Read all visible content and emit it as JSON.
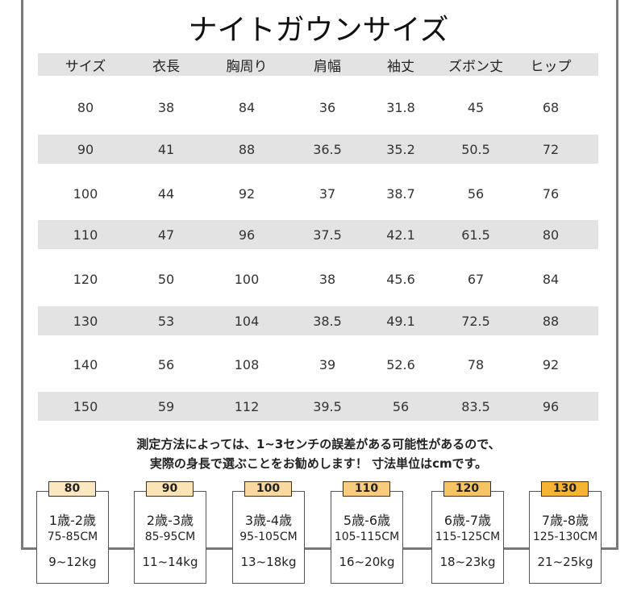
{
  "title": "ナイトガウンサイズ",
  "headers": [
    "サイズ",
    "衣長",
    "胸周り",
    "肩幅",
    "袖丈",
    "ズボン丈",
    "ヒップ"
  ],
  "rows": [
    [
      "80",
      "38",
      "84",
      "36",
      "31.8",
      "45",
      "68"
    ],
    [
      "90",
      "41",
      "88",
      "36.5",
      "35.2",
      "50.5",
      "72"
    ],
    [
      "100",
      "44",
      "92",
      "37",
      "38.7",
      "56",
      "76"
    ],
    [
      "110",
      "47",
      "96",
      "37.5",
      "42.1",
      "61.5",
      "80"
    ],
    [
      "120",
      "50",
      "100",
      "38",
      "45.6",
      "67",
      "84"
    ],
    [
      "130",
      "53",
      "104",
      "38.5",
      "49.1",
      "72.5",
      "88"
    ],
    [
      "140",
      "56",
      "108",
      "39",
      "52.6",
      "78",
      "92"
    ],
    [
      "150",
      "59",
      "112",
      "39.5",
      "56",
      "83.5",
      "96"
    ]
  ],
  "note": [
    "測定方法によっては、1~3センチの誤差がある可能性があるので、",
    "実際の身長で選ぶことをお勧めします！ 寸法単位はcmです。"
  ],
  "cards": [
    {
      "size": "80",
      "age": "1歳-2歳",
      "height": "75-85CM",
      "weight": "9~12kg",
      "color": "#fbe7c0"
    },
    {
      "size": "90",
      "age": "2歳-3歳",
      "height": "85-95CM",
      "weight": "11~14kg",
      "color": "#fbe3b5"
    },
    {
      "size": "100",
      "age": "3歳-4歳",
      "height": "95-105CM",
      "weight": "13~18kg",
      "color": "#fad9a0"
    },
    {
      "size": "110",
      "age": "5歳-6歳",
      "height": "105-115CM",
      "weight": "16~20kg",
      "color": "#f8cc7c"
    },
    {
      "size": "120",
      "age": "6歳-7歳",
      "height": "115-125CM",
      "weight": "18~23kg",
      "color": "#f7c463"
    },
    {
      "size": "130",
      "age": "7歳-8歳",
      "height": "125-130CM",
      "weight": "21~25kg",
      "color": "#f5b433"
    }
  ]
}
